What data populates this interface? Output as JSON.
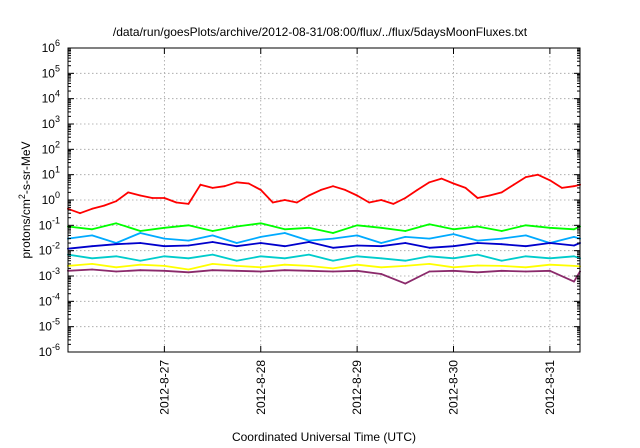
{
  "chart_data": {
    "type": "line",
    "title": "/data/run/goesPlots/archive/2012-08-31/08:00/flux/../flux/5daysMoonFluxes.txt",
    "xlabel": "Coordinated Universal Time (UTC)",
    "ylabel": "protons/cm2-s-sr-MeV",
    "ylabel_base": "protons/cm",
    "ylabel_sup": "2",
    "ylabel_rest": "-s-sr-MeV",
    "y_scale": "log",
    "ylim": [
      1e-06,
      1000000.0
    ],
    "y_ticks": [
      {
        "value": 1e-06,
        "base": "10",
        "exp": "-6"
      },
      {
        "value": 1e-05,
        "base": "10",
        "exp": "-5"
      },
      {
        "value": 0.0001,
        "base": "10",
        "exp": "-4"
      },
      {
        "value": 0.001,
        "base": "10",
        "exp": "-3"
      },
      {
        "value": 0.01,
        "base": "10",
        "exp": "-2"
      },
      {
        "value": 0.1,
        "base": "10",
        "exp": "-1"
      },
      {
        "value": 1.0,
        "base": "10",
        "exp": "0"
      },
      {
        "value": 10.0,
        "base": "10",
        "exp": "1"
      },
      {
        "value": 100.0,
        "base": "10",
        "exp": "2"
      },
      {
        "value": 1000.0,
        "base": "10",
        "exp": "3"
      },
      {
        "value": 10000.0,
        "base": "10",
        "exp": "4"
      },
      {
        "value": 100000.0,
        "base": "10",
        "exp": "5"
      },
      {
        "value": 1000000.0,
        "base": "10",
        "exp": "6"
      }
    ],
    "xlim": [
      "2012-08-26 00:00",
      "2012-08-31 07:30"
    ],
    "x_ticks": [
      {
        "value": "2012-08-27 00:00",
        "label": "2012-8-27"
      },
      {
        "value": "2012-08-28 00:00",
        "label": "2012-8-28"
      },
      {
        "value": "2012-08-29 00:00",
        "label": "2012-8-29"
      },
      {
        "value": "2012-08-30 00:00",
        "label": "2012-8-30"
      },
      {
        "value": "2012-08-31 00:00",
        "label": "2012-8-31"
      }
    ],
    "grid": true,
    "series": [
      {
        "color": "#ff0000",
        "x": [
          "2012-08-26 00:00",
          "2012-08-26 03:00",
          "2012-08-26 06:00",
          "2012-08-26 09:00",
          "2012-08-26 12:00",
          "2012-08-26 15:00",
          "2012-08-26 18:00",
          "2012-08-26 21:00",
          "2012-08-27 00:00",
          "2012-08-27 03:00",
          "2012-08-27 06:00",
          "2012-08-27 09:00",
          "2012-08-27 12:00",
          "2012-08-27 15:00",
          "2012-08-27 18:00",
          "2012-08-27 21:00",
          "2012-08-28 00:00",
          "2012-08-28 03:00",
          "2012-08-28 06:00",
          "2012-08-28 09:00",
          "2012-08-28 12:00",
          "2012-08-28 15:00",
          "2012-08-28 18:00",
          "2012-08-28 21:00",
          "2012-08-29 00:00",
          "2012-08-29 03:00",
          "2012-08-29 06:00",
          "2012-08-29 09:00",
          "2012-08-29 12:00",
          "2012-08-29 15:00",
          "2012-08-29 18:00",
          "2012-08-29 21:00",
          "2012-08-30 00:00",
          "2012-08-30 03:00",
          "2012-08-30 06:00",
          "2012-08-30 09:00",
          "2012-08-30 12:00",
          "2012-08-30 15:00",
          "2012-08-30 18:00",
          "2012-08-30 21:00",
          "2012-08-31 00:00",
          "2012-08-31 03:00",
          "2012-08-31 06:00",
          "2012-08-31 07:30"
        ],
        "values": [
          0.45,
          0.3,
          0.45,
          0.6,
          0.9,
          2.0,
          1.5,
          1.2,
          1.2,
          0.8,
          0.7,
          4.0,
          3.0,
          3.5,
          5.0,
          4.5,
          2.5,
          0.8,
          1.0,
          0.8,
          1.5,
          2.5,
          3.5,
          2.5,
          1.5,
          0.8,
          1.0,
          0.7,
          1.2,
          2.5,
          5.0,
          7.0,
          4.5,
          3.0,
          1.2,
          1.5,
          2.0,
          4.0,
          8.0,
          10.0,
          6.0,
          3.0,
          3.5,
          4.0
        ]
      },
      {
        "color": "#00ff00",
        "x": [
          "2012-08-26 00:00",
          "2012-08-26 06:00",
          "2012-08-26 12:00",
          "2012-08-26 18:00",
          "2012-08-27 00:00",
          "2012-08-27 06:00",
          "2012-08-27 12:00",
          "2012-08-27 18:00",
          "2012-08-28 00:00",
          "2012-08-28 06:00",
          "2012-08-28 12:00",
          "2012-08-28 18:00",
          "2012-08-29 00:00",
          "2012-08-29 06:00",
          "2012-08-29 12:00",
          "2012-08-29 18:00",
          "2012-08-30 00:00",
          "2012-08-30 06:00",
          "2012-08-30 12:00",
          "2012-08-30 18:00",
          "2012-08-31 00:00",
          "2012-08-31 06:00",
          "2012-08-31 07:30"
        ],
        "values": [
          0.09,
          0.07,
          0.12,
          0.06,
          0.08,
          0.1,
          0.06,
          0.09,
          0.12,
          0.07,
          0.08,
          0.05,
          0.1,
          0.08,
          0.06,
          0.11,
          0.07,
          0.09,
          0.06,
          0.1,
          0.08,
          0.07,
          0.09
        ]
      },
      {
        "color": "#00aaff",
        "x": [
          "2012-08-26 00:00",
          "2012-08-26 06:00",
          "2012-08-26 12:00",
          "2012-08-26 18:00",
          "2012-08-27 00:00",
          "2012-08-27 06:00",
          "2012-08-27 12:00",
          "2012-08-27 18:00",
          "2012-08-28 00:00",
          "2012-08-28 06:00",
          "2012-08-28 12:00",
          "2012-08-28 18:00",
          "2012-08-29 00:00",
          "2012-08-29 06:00",
          "2012-08-29 12:00",
          "2012-08-29 18:00",
          "2012-08-30 00:00",
          "2012-08-30 06:00",
          "2012-08-30 12:00",
          "2012-08-30 18:00",
          "2012-08-31 00:00",
          "2012-08-31 06:00",
          "2012-08-31 07:30"
        ],
        "values": [
          0.03,
          0.04,
          0.02,
          0.05,
          0.03,
          0.025,
          0.04,
          0.02,
          0.035,
          0.05,
          0.025,
          0.03,
          0.04,
          0.02,
          0.035,
          0.03,
          0.045,
          0.025,
          0.03,
          0.04,
          0.02,
          0.035,
          0.03
        ]
      },
      {
        "color": "#0000cc",
        "x": [
          "2012-08-26 00:00",
          "2012-08-26 06:00",
          "2012-08-26 12:00",
          "2012-08-26 18:00",
          "2012-08-27 00:00",
          "2012-08-27 06:00",
          "2012-08-27 12:00",
          "2012-08-27 18:00",
          "2012-08-28 00:00",
          "2012-08-28 06:00",
          "2012-08-28 12:00",
          "2012-08-28 18:00",
          "2012-08-29 00:00",
          "2012-08-29 06:00",
          "2012-08-29 12:00",
          "2012-08-29 18:00",
          "2012-08-30 00:00",
          "2012-08-30 06:00",
          "2012-08-30 12:00",
          "2012-08-30 18:00",
          "2012-08-31 00:00",
          "2012-08-31 06:00",
          "2012-08-31 07:30"
        ],
        "values": [
          0.012,
          0.015,
          0.018,
          0.02,
          0.015,
          0.016,
          0.022,
          0.015,
          0.02,
          0.015,
          0.022,
          0.013,
          0.016,
          0.015,
          0.02,
          0.013,
          0.015,
          0.02,
          0.018,
          0.015,
          0.02,
          0.016,
          0.02
        ]
      },
      {
        "color": "#00cccc",
        "x": [
          "2012-08-26 00:00",
          "2012-08-26 06:00",
          "2012-08-26 12:00",
          "2012-08-26 18:00",
          "2012-08-27 00:00",
          "2012-08-27 06:00",
          "2012-08-27 12:00",
          "2012-08-27 18:00",
          "2012-08-28 00:00",
          "2012-08-28 06:00",
          "2012-08-28 12:00",
          "2012-08-28 18:00",
          "2012-08-29 00:00",
          "2012-08-29 06:00",
          "2012-08-29 12:00",
          "2012-08-29 18:00",
          "2012-08-30 00:00",
          "2012-08-30 06:00",
          "2012-08-30 12:00",
          "2012-08-30 18:00",
          "2012-08-31 00:00",
          "2012-08-31 06:00",
          "2012-08-31 07:30"
        ],
        "values": [
          0.007,
          0.005,
          0.006,
          0.004,
          0.006,
          0.005,
          0.007,
          0.004,
          0.006,
          0.005,
          0.007,
          0.004,
          0.006,
          0.005,
          0.004,
          0.006,
          0.005,
          0.007,
          0.004,
          0.006,
          0.005,
          0.006,
          0.005
        ]
      },
      {
        "color": "#ffff00",
        "x": [
          "2012-08-26 00:00",
          "2012-08-26 06:00",
          "2012-08-26 12:00",
          "2012-08-26 18:00",
          "2012-08-27 00:00",
          "2012-08-27 06:00",
          "2012-08-27 12:00",
          "2012-08-27 18:00",
          "2012-08-28 00:00",
          "2012-08-28 06:00",
          "2012-08-28 12:00",
          "2012-08-28 18:00",
          "2012-08-29 00:00",
          "2012-08-29 06:00",
          "2012-08-29 12:00",
          "2012-08-29 18:00",
          "2012-08-30 00:00",
          "2012-08-30 06:00",
          "2012-08-30 12:00",
          "2012-08-30 18:00",
          "2012-08-31 00:00",
          "2012-08-31 06:00",
          "2012-08-31 07:30"
        ],
        "values": [
          0.0025,
          0.003,
          0.0022,
          0.0028,
          0.0025,
          0.0018,
          0.003,
          0.0025,
          0.0022,
          0.0028,
          0.0025,
          0.002,
          0.0028,
          0.0022,
          0.0025,
          0.003,
          0.0022,
          0.0026,
          0.0025,
          0.0022,
          0.0028,
          0.0025,
          0.0024
        ]
      },
      {
        "color": "#8b2a6b",
        "x": [
          "2012-08-26 00:00",
          "2012-08-26 06:00",
          "2012-08-26 12:00",
          "2012-08-26 18:00",
          "2012-08-27 00:00",
          "2012-08-27 06:00",
          "2012-08-27 12:00",
          "2012-08-27 18:00",
          "2012-08-28 00:00",
          "2012-08-28 06:00",
          "2012-08-28 12:00",
          "2012-08-28 18:00",
          "2012-08-29 00:00",
          "2012-08-29 06:00",
          "2012-08-29 12:00",
          "2012-08-29 18:00",
          "2012-08-30 00:00",
          "2012-08-30 06:00",
          "2012-08-30 12:00",
          "2012-08-30 18:00",
          "2012-08-31 00:00",
          "2012-08-31 06:00",
          "2012-08-31 07:30"
        ],
        "values": [
          0.0016,
          0.0018,
          0.0015,
          0.0017,
          0.0016,
          0.0014,
          0.0017,
          0.0016,
          0.0015,
          0.0017,
          0.0016,
          0.0015,
          0.0016,
          0.0012,
          0.0005,
          0.0015,
          0.0016,
          0.0014,
          0.0016,
          0.0015,
          0.0016,
          0.0006,
          0.0015
        ]
      }
    ]
  }
}
